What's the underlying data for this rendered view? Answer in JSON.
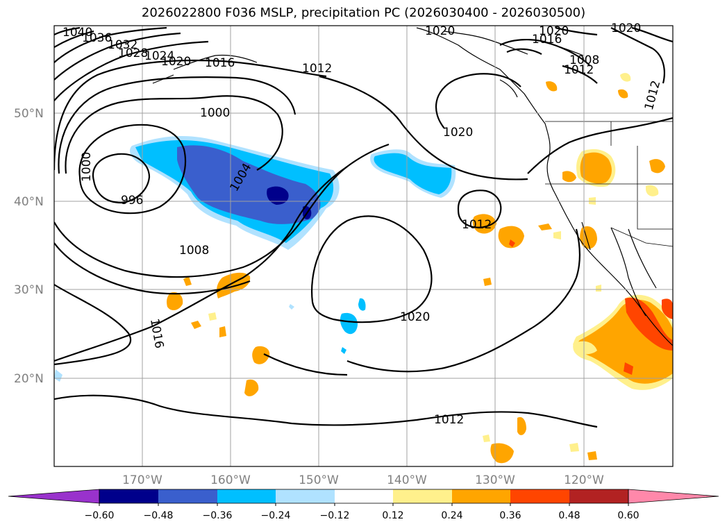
{
  "title": "2026022800 F036 MSLP, precipitation PC (2026030400 - 2026030500)",
  "latitude_labels": [
    "50°N",
    "40°N",
    "30°N",
    "20°N"
  ],
  "longitude_labels": [
    "170°W",
    "160°W",
    "150°W",
    "140°W",
    "130°W",
    "120°W"
  ],
  "isobar_labels": [
    "1040",
    "1036",
    "1032",
    "1028",
    "1024",
    "1020",
    "1016",
    "1012",
    "1000",
    "1000",
    "996",
    "1004",
    "1008",
    "1020",
    "1012",
    "1020",
    "1016",
    "1012",
    "1020",
    "1020",
    "1008",
    "1012",
    "1020",
    "1012",
    "1016"
  ],
  "colorbar": {
    "tick_labels": [
      "−0.60",
      "−0.48",
      "−0.36",
      "−0.24",
      "−0.12",
      "0.12",
      "0.24",
      "0.36",
      "0.48",
      "0.60"
    ],
    "colors": [
      "#9932cc",
      "#00008b",
      "#3a5fcd",
      "#00bfff",
      "#b0e2ff",
      "#ffffff",
      "#fff08c",
      "#ffa500",
      "#ff4500",
      "#b22222",
      "#ff88aa"
    ]
  },
  "colors": {
    "contour": "#000000",
    "grid": "#a0a0a0",
    "frame": "#000000"
  }
}
